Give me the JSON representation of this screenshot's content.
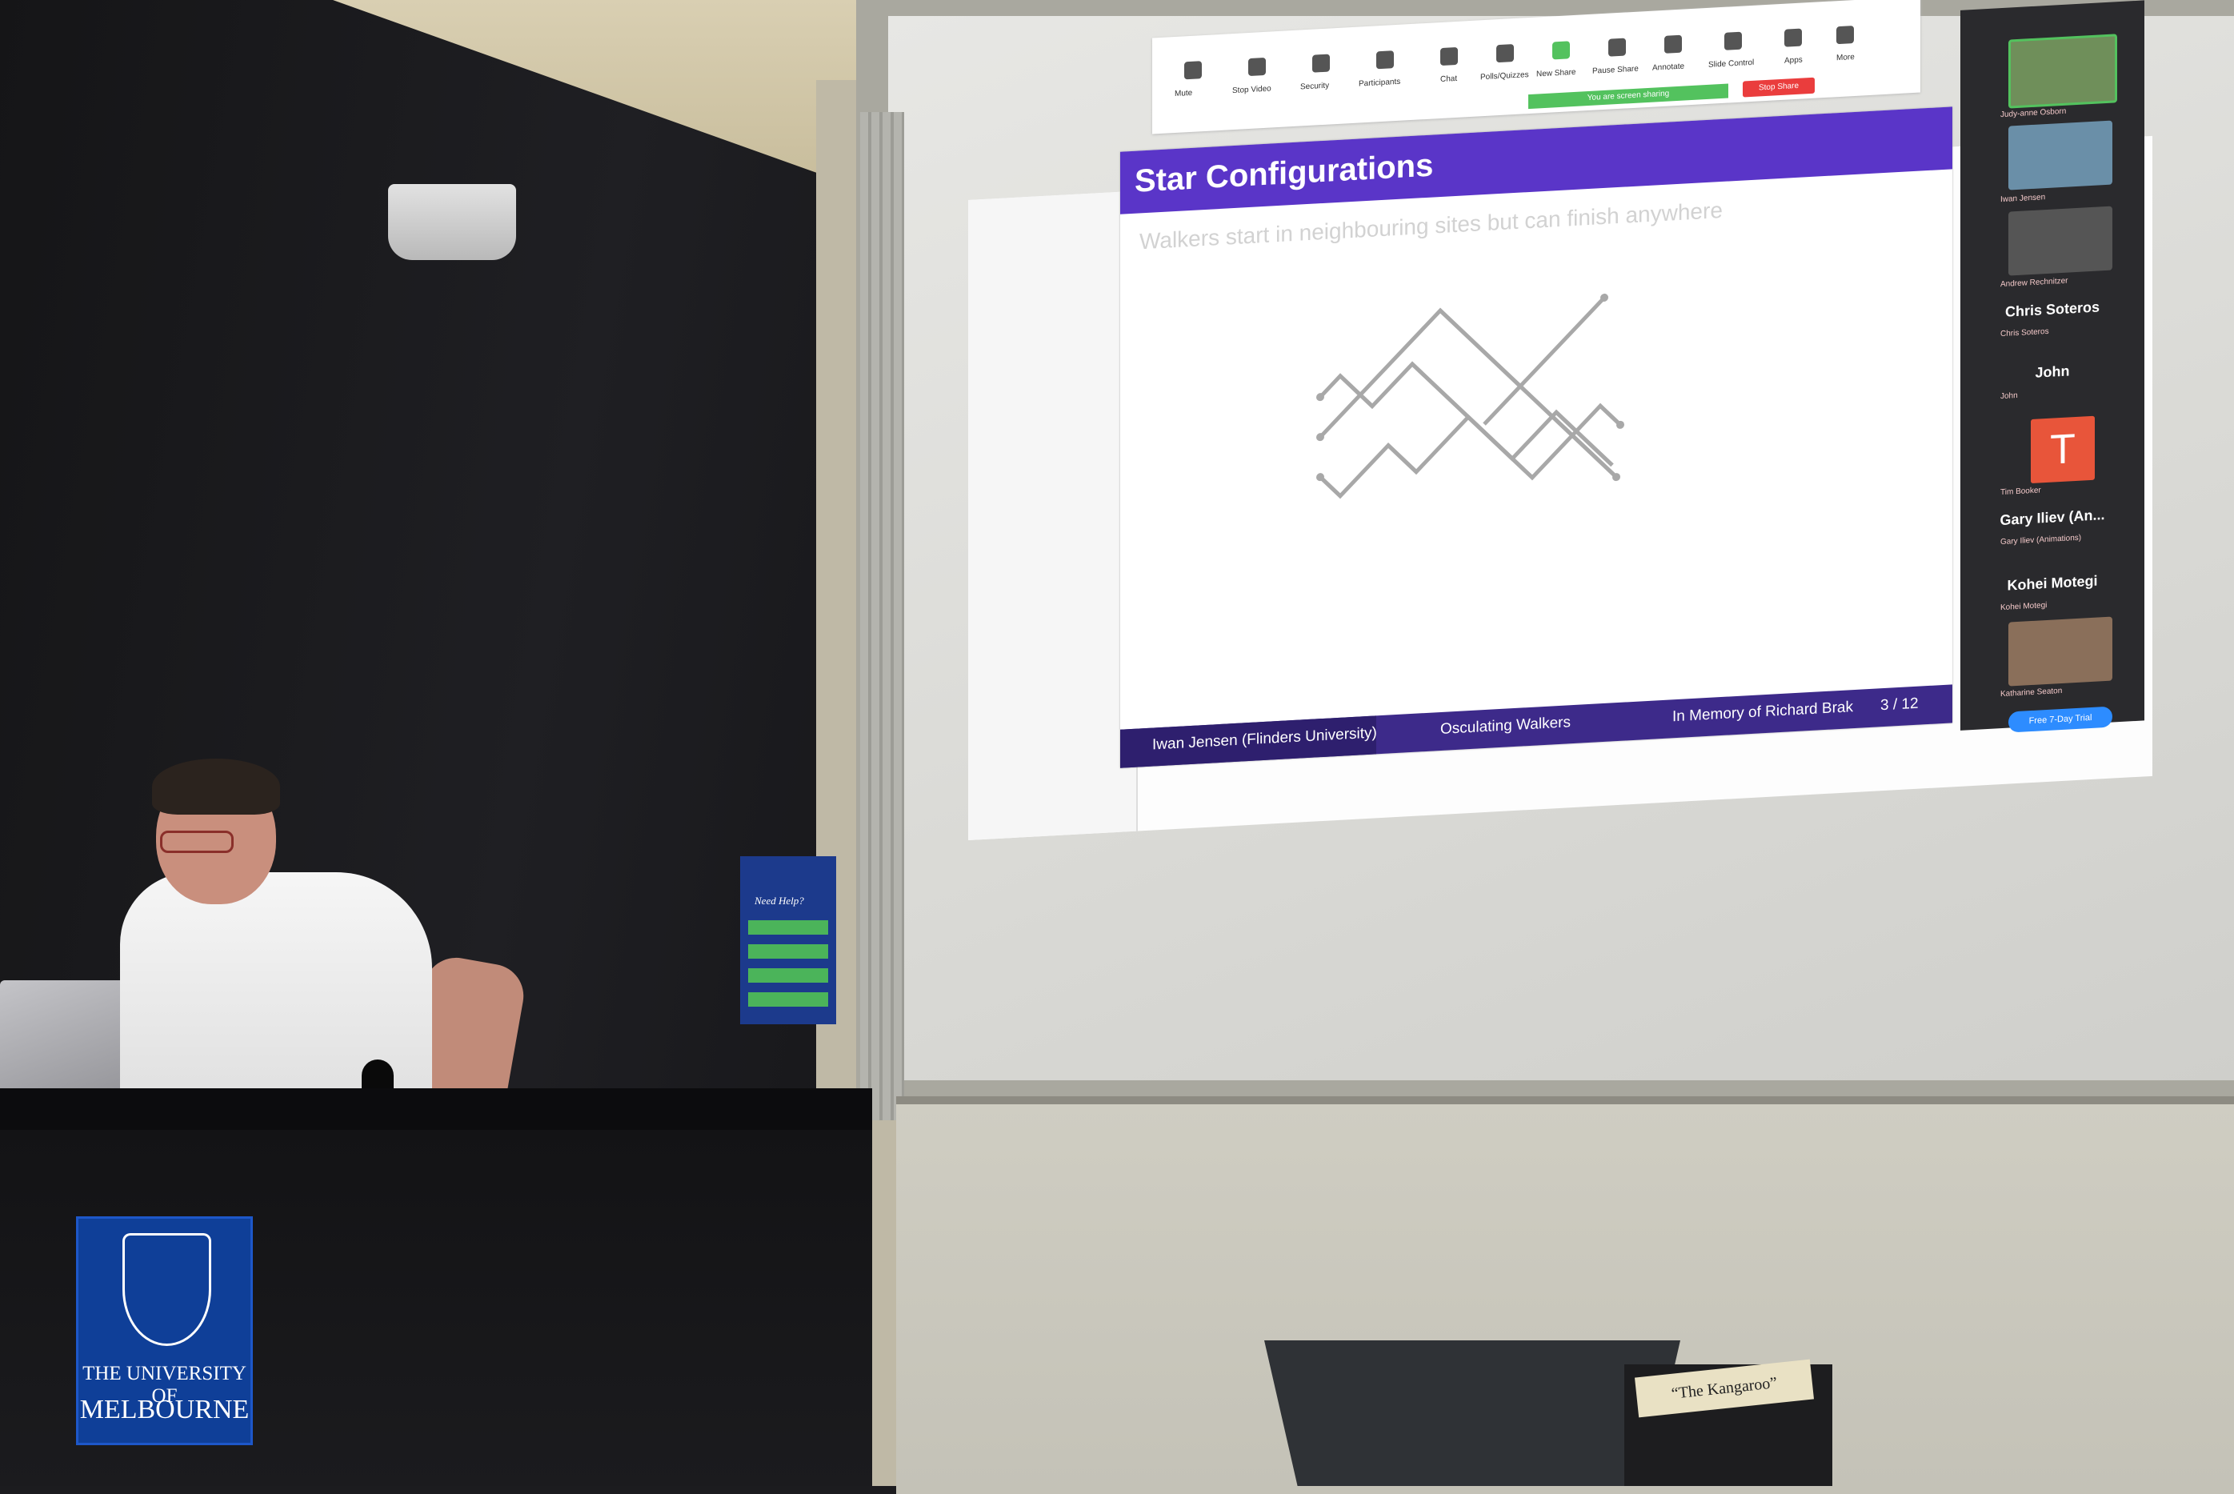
{
  "slide": {
    "title": "Star Configurations",
    "subtitle": "Walkers start in neighbouring sites but can finish anywhere",
    "footer_author": "Iwan Jensen  (Flinders University)",
    "footer_title": "Osculating Walkers",
    "footer_memory": "In Memory of Richard Brak",
    "footer_page": "3 / 12"
  },
  "zoom_toolbar": {
    "items": [
      "Mute",
      "Stop Video",
      "Security",
      "Participants",
      "Chat",
      "Polls/Quizzes",
      "New Share",
      "Pause Share",
      "Annotate",
      "Slide Control",
      "Apps",
      "More"
    ],
    "share_banner": "You are screen sharing",
    "stop_share": "Stop Share"
  },
  "participants": {
    "p1": {
      "sub": "Judy-anne Osborn"
    },
    "p2": {
      "sub": "Iwan Jensen"
    },
    "p3": {
      "sub": "Andrew Rechnitzer"
    },
    "p4": {
      "name": "Chris Soteros",
      "sub": "Chris Soteros"
    },
    "p5": {
      "name": "John",
      "sub": "John"
    },
    "p6": {
      "avatar": "T",
      "sub": "Tim Booker"
    },
    "p7": {
      "name": "Gary Iliev (An...",
      "sub": "Gary Iliev (Animations)"
    },
    "p8": {
      "name": "Kohei Motegi",
      "sub": "Kohei Motegi"
    },
    "p9": {
      "sub": "Katharine Seaton"
    },
    "trial_button": "Free 7-Day Trial"
  },
  "room": {
    "logo_line1": "THE UNIVERSITY OF",
    "logo_line2": "MELBOURNE",
    "help_title": "Need Help?",
    "box_label": "“The Kangaroo”"
  },
  "colors": {
    "slide_title_bar": "#5a35c8",
    "footer": "#3d2a8a",
    "zoom_avatar": "#e8553a",
    "zoom_share": "#53c25e",
    "zoom_stop": "#ea3d3d",
    "uom_blue": "#0f3f98"
  }
}
